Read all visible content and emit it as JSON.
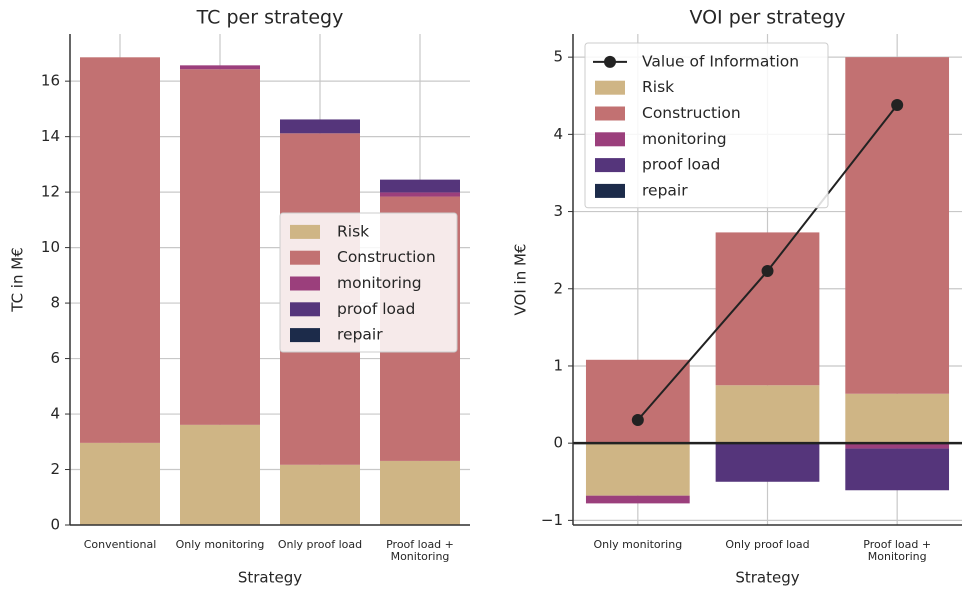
{
  "chart_data": [
    {
      "type": "bar",
      "stacked": true,
      "title": "TC per strategy",
      "xlabel": "Strategy",
      "ylabel": "TC in M€",
      "categories": [
        "Conventional",
        "Only monitoring",
        "Only proof load",
        "Proof load +\nMonitoring"
      ],
      "series": [
        {
          "name": "Risk",
          "color": "#cfb585",
          "values": [
            2.96,
            3.61,
            2.17,
            2.31
          ]
        },
        {
          "name": "Construction",
          "color": "#c27172",
          "values": [
            13.9,
            12.82,
            11.95,
            9.53
          ]
        },
        {
          "name": "monitoring",
          "color": "#9b3f7c",
          "values": [
            0,
            0.14,
            0,
            0.15
          ]
        },
        {
          "name": "proof load",
          "color": "#55357b",
          "values": [
            0,
            0,
            0.5,
            0.46
          ]
        },
        {
          "name": "repair",
          "color": "#1c2b4a",
          "values": [
            0,
            0,
            0,
            0
          ]
        }
      ],
      "ylim": [
        0,
        17.7
      ],
      "yticks": [
        0,
        2,
        4,
        6,
        8,
        10,
        12,
        14,
        16
      ],
      "grid": true,
      "legend": "center right"
    },
    {
      "type": "bar",
      "stacked": true,
      "title": "VOI per strategy",
      "xlabel": "Strategy",
      "ylabel": "VOI in M€",
      "categories": [
        "Only monitoring",
        "Only proof load",
        "Proof load +\nMonitoring"
      ],
      "series": [
        {
          "name": "Value of Information",
          "type": "line",
          "color": "#222222",
          "values": [
            0.3,
            2.23,
            4.38
          ]
        },
        {
          "name": "Risk",
          "color": "#cfb585",
          "values": [
            -0.68,
            0.75,
            0.64
          ]
        },
        {
          "name": "Construction",
          "color": "#c27172",
          "values": [
            1.08,
            1.98,
            4.36
          ]
        },
        {
          "name": "monitoring",
          "color": "#9b3f7c",
          "values": [
            -0.1,
            0,
            -0.07
          ]
        },
        {
          "name": "proof load",
          "color": "#55357b",
          "values": [
            0,
            -0.5,
            -0.54
          ]
        },
        {
          "name": "repair",
          "color": "#1c2b4a",
          "values": [
            0,
            0,
            0
          ]
        }
      ],
      "ylim": [
        -1.06,
        5.3
      ],
      "yticks": [
        {
          "value": -1,
          "label": "−1"
        },
        0,
        1,
        2,
        3,
        4,
        5
      ],
      "grid": true,
      "zero_line": true,
      "legend": "upper left"
    }
  ]
}
